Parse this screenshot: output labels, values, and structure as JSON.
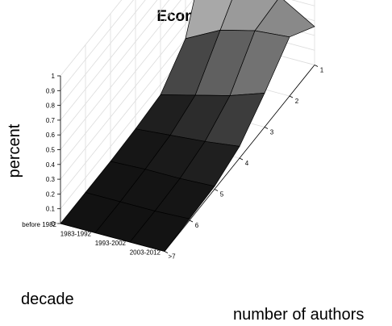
{
  "chart_data": {
    "type": "surface",
    "title": "Economics",
    "zlabel": "percent",
    "ylabel": "decade",
    "xlabel": "number of authors",
    "zlim": [
      0,
      1
    ],
    "z_ticks": [
      "0",
      "0.1",
      "0.2",
      "0.3",
      "0.4",
      "0.5",
      "0.6",
      "0.7",
      "0.8",
      "0.9",
      "1"
    ],
    "authors": [
      "1",
      "2",
      "3",
      "4",
      "5",
      "6",
      ">7"
    ],
    "decades": [
      "before 1982",
      "1983-1992",
      "1993-2002",
      "2003-2012"
    ],
    "grid": true,
    "colormap": "gray",
    "values": [
      [
        0.75,
        0.2,
        0.03,
        0.01,
        0.0,
        0.0,
        0.0
      ],
      [
        0.55,
        0.32,
        0.09,
        0.03,
        0.01,
        0.0,
        0.0
      ],
      [
        0.4,
        0.38,
        0.15,
        0.05,
        0.01,
        0.0,
        0.0
      ],
      [
        0.26,
        0.4,
        0.23,
        0.08,
        0.02,
        0.01,
        0.0
      ]
    ]
  }
}
